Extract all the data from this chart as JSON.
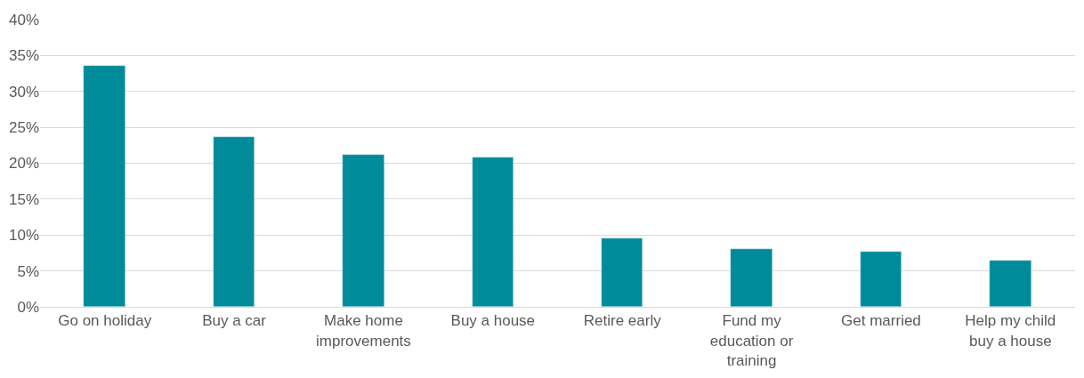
{
  "chart_data": {
    "type": "bar",
    "categories": [
      "Go on holiday",
      "Buy a car",
      "Make home improvements",
      "Buy a house",
      "Retire early",
      "Fund my education or training",
      "Get married",
      "Help my child buy a house"
    ],
    "values": [
      33.6,
      23.7,
      21.2,
      20.8,
      9.5,
      8.0,
      7.7,
      6.5
    ],
    "color": "#008b9a",
    "ylim": [
      0,
      40
    ],
    "yticks": [
      {
        "value": 0,
        "label": "0%"
      },
      {
        "value": 5,
        "label": "5%"
      },
      {
        "value": 10,
        "label": "10%"
      },
      {
        "value": 15,
        "label": "15%"
      },
      {
        "value": 20,
        "label": "20%"
      },
      {
        "value": 25,
        "label": "25%"
      },
      {
        "value": 30,
        "label": "30%"
      },
      {
        "value": 35,
        "label": "35%"
      },
      {
        "value": 40,
        "label": "40%"
      }
    ],
    "grid": "y"
  }
}
